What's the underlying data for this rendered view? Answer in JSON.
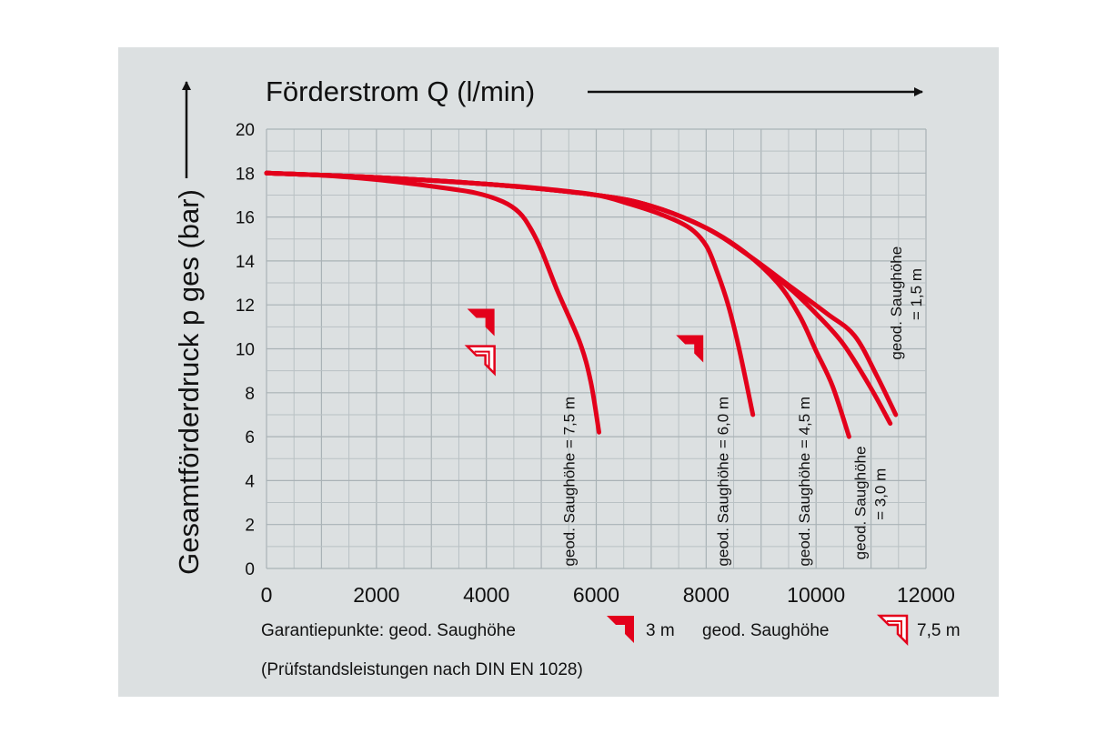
{
  "colors": {
    "background": "#dce0e1",
    "curve": "#e3001b",
    "grid": "#b9c1c4",
    "text": "#111111"
  },
  "chart_data": {
    "type": "line",
    "xlabel": "Förderstrom Q (l/min)",
    "ylabel": "Gesamtförderdruck p ges (bar)",
    "xlim": [
      0,
      12000
    ],
    "ylim": [
      0,
      20
    ],
    "x_ticks": [
      "0",
      "2000",
      "4000",
      "6000",
      "8000",
      "10000",
      "12000"
    ],
    "y_ticks": [
      "0",
      "2",
      "4",
      "6",
      "8",
      "10",
      "12",
      "14",
      "16",
      "18",
      "20"
    ],
    "grid": true,
    "series": [
      {
        "name": "geod. Saughöhe = 7,5 m",
        "label_lines": [
          "geod. Saughöhe = 7,5 m"
        ],
        "x": [
          0,
          1000,
          2000,
          3000,
          3800,
          4300,
          4600,
          4800,
          5000,
          5300,
          5700,
          5900,
          6050
        ],
        "y": [
          18,
          17.9,
          17.7,
          17.4,
          17.1,
          16.7,
          16.2,
          15.5,
          14.5,
          12.6,
          10.3,
          8.5,
          6.2
        ]
      },
      {
        "name": "geod. Saughöhe = 6,0 m",
        "label_lines": [
          "geod. Saughöhe = 6,0 m"
        ],
        "x": [
          0,
          2000,
          4000,
          5000,
          6000,
          6600,
          7200,
          7700,
          8000,
          8200,
          8400,
          8600,
          8850
        ],
        "y": [
          18,
          17.8,
          17.5,
          17.3,
          17,
          16.6,
          16.1,
          15.5,
          14.7,
          13.5,
          12,
          10,
          7
        ]
      },
      {
        "name": "geod. Saughöhe = 4,5 m",
        "label_lines": [
          "geod. Saughöhe = 4,5 m"
        ],
        "x": [
          0,
          2000,
          4000,
          6000,
          7000,
          8000,
          8700,
          9300,
          9700,
          10000,
          10300,
          10600
        ],
        "y": [
          18,
          17.8,
          17.5,
          17,
          16.5,
          15.5,
          14.4,
          13,
          11.5,
          9.9,
          8.3,
          6
        ]
      },
      {
        "name": "geod. Saughöhe = 3,0 m",
        "label_lines": [
          "geod. Saughöhe",
          "= 3,0 m"
        ],
        "x": [
          0,
          2000,
          4000,
          6000,
          7000,
          8000,
          8800,
          9500,
          10000,
          10500,
          11000,
          11350
        ],
        "y": [
          18,
          17.8,
          17.5,
          17,
          16.5,
          15.5,
          14.2,
          12.8,
          11.6,
          10.2,
          8.2,
          6.6
        ]
      },
      {
        "name": "geod. Saughöhe = 1,5 m",
        "label_lines": [
          "geod. Saughöhe",
          "= 1,5 m"
        ],
        "x": [
          0,
          2000,
          4000,
          6000,
          7000,
          8000,
          8800,
          9500,
          10200,
          10700,
          11100,
          11450
        ],
        "y": [
          18,
          17.8,
          17.5,
          17,
          16.5,
          15.5,
          14.2,
          12.9,
          11.6,
          10.6,
          8.8,
          7
        ]
      }
    ],
    "guarantee_markers": [
      {
        "style": "filled",
        "label": "3 m",
        "x": 3900,
        "y": 11.2
      },
      {
        "style": "outline",
        "label": "7,5 m",
        "x": 3900,
        "y": 9.5
      },
      {
        "style": "filled",
        "label": "3 m",
        "x": 7700,
        "y": 10.0
      }
    ],
    "legend": {
      "text1": "Garantiepunkte: geod. Saughöhe",
      "marker1_label": "3 m",
      "text2": "geod. Saughöhe",
      "marker2_label": "7,5 m"
    },
    "footnote": "(Prüfstandsleistungen nach DIN EN 1028)"
  }
}
